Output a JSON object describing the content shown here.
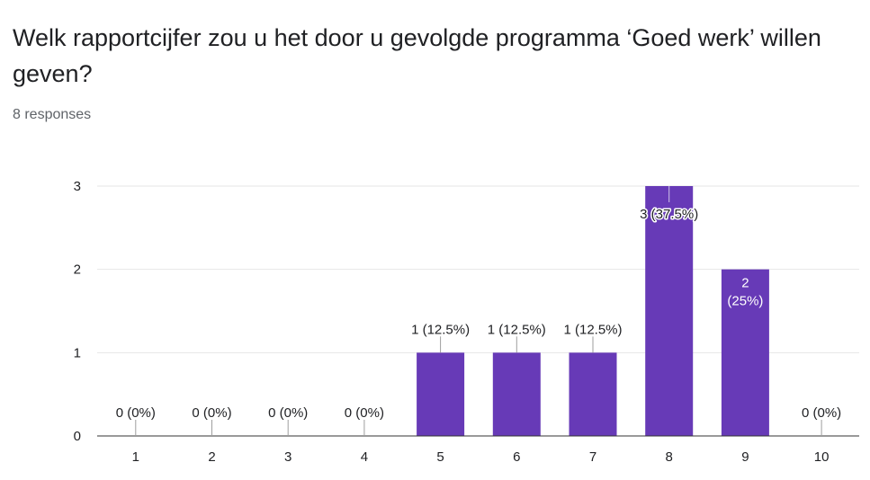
{
  "question": {
    "title": "Welk rapportcijfer zou u het door u gevolgde programma ‘Goed werk’ willen geven?",
    "responses": "8 responses"
  },
  "colors": {
    "bar": "#673ab7",
    "grid": "#e6e6e6",
    "axis": "#333333"
  },
  "chart_data": {
    "type": "bar",
    "categories": [
      "1",
      "2",
      "3",
      "4",
      "5",
      "6",
      "7",
      "8",
      "9",
      "10"
    ],
    "values": [
      0,
      0,
      0,
      0,
      1,
      1,
      1,
      3,
      2,
      0
    ],
    "labels": [
      "0 (0%)",
      "0 (0%)",
      "0 (0%)",
      "0 (0%)",
      "1 (12.5%)",
      "1 (12.5%)",
      "1 (12.5%)",
      "3 (37.5%)",
      "2\n(25%)",
      "0 (0%)"
    ],
    "ylim": [
      0,
      3
    ],
    "yticks": [
      0,
      1,
      2,
      3
    ],
    "grid": true
  }
}
